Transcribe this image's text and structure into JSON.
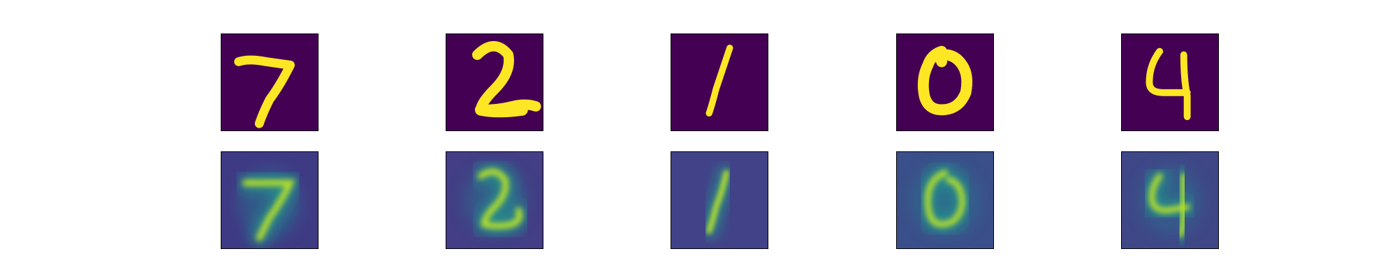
{
  "figure": {
    "rows": [
      {
        "role": "original",
        "background_color": "#440154",
        "stroke_color": "#fde725",
        "items": [
          {
            "icon": "digit-7-icon"
          },
          {
            "icon": "digit-2-icon"
          },
          {
            "icon": "digit-1-icon"
          },
          {
            "icon": "digit-0-icon"
          },
          {
            "icon": "digit-4-icon"
          }
        ]
      },
      {
        "role": "reconstruction",
        "background_colors": [
          "#3f3a84",
          "#433e85",
          "#424288",
          "#3b4f8a",
          "#3f4787"
        ],
        "glow_color": "#21918c",
        "stroke_color": "#b5de2b",
        "items": [
          {
            "icon": "digit-7-icon"
          },
          {
            "icon": "digit-2-icon"
          },
          {
            "icon": "digit-1-icon"
          },
          {
            "icon": "digit-0-icon"
          },
          {
            "icon": "digit-4-icon"
          }
        ]
      }
    ]
  }
}
